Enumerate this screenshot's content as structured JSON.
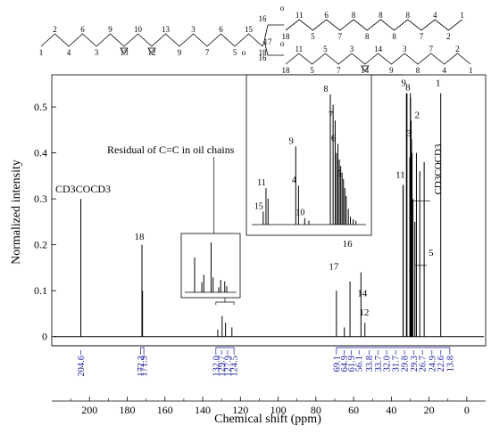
{
  "structure": {
    "chain1": [
      "1",
      "2",
      "4",
      "6",
      "3",
      "9",
      "13",
      "10",
      "12",
      "13",
      "9",
      "3",
      "7",
      "6",
      "5",
      "15",
      "18"
    ],
    "chain2": [
      "18",
      "11",
      "5",
      "6",
      "7",
      "8",
      "8",
      "8",
      "8",
      "8",
      "7",
      "4",
      "2",
      "1"
    ],
    "chain3": [
      "18",
      "11",
      "5",
      "5",
      "7",
      "3",
      "14",
      "14",
      "9",
      "3",
      "8",
      "7",
      "4",
      "2",
      "1"
    ],
    "junction": [
      "16",
      "17",
      "16"
    ],
    "carbonyl_o": "o"
  },
  "chart_data": {
    "type": "line",
    "xlabel": "Chemical shift (ppm)",
    "ylabel": "Normalized intensity",
    "xlim": [
      220,
      -10
    ],
    "ylim": [
      -0.02,
      0.57
    ],
    "x_ticks": [
      200,
      180,
      160,
      140,
      120,
      100,
      80,
      60,
      40,
      20,
      0
    ],
    "y_ticks": [
      0,
      0.1,
      0.2,
      0.3,
      0.4,
      0.5
    ],
    "peaks": [
      {
        "ppm": 204.6,
        "y": 0.3
      },
      {
        "ppm": 172.2,
        "y": 0.2
      },
      {
        "ppm": 171.9,
        "y": 0.1
      },
      {
        "ppm": 132.0,
        "y": 0.015
      },
      {
        "ppm": 129.7,
        "y": 0.045
      },
      {
        "ppm": 127.9,
        "y": 0.03
      },
      {
        "ppm": 124.5,
        "y": 0.02
      },
      {
        "ppm": 69.1,
        "y": 0.1
      },
      {
        "ppm": 64.9,
        "y": 0.02
      },
      {
        "ppm": 61.9,
        "y": 0.12
      },
      {
        "ppm": 56.1,
        "y": 0.14
      },
      {
        "ppm": 54.0,
        "y": 0.03
      },
      {
        "ppm": 33.8,
        "y": 0.33
      },
      {
        "ppm": 33.7,
        "y": 0.33
      },
      {
        "ppm": 32.0,
        "y": 0.53
      },
      {
        "ppm": 31.7,
        "y": 0.53
      },
      {
        "ppm": 30.2,
        "y": 0.39
      },
      {
        "ppm": 29.9,
        "y": 0.53
      },
      {
        "ppm": 29.8,
        "y": 0.52
      },
      {
        "ppm": 29.5,
        "y": 0.47
      },
      {
        "ppm": 29.3,
        "y": 0.43
      },
      {
        "ppm": 29.0,
        "y": 0.4
      },
      {
        "ppm": 28.5,
        "y": 0.3
      },
      {
        "ppm": 27.5,
        "y": 0.25
      },
      {
        "ppm": 26.7,
        "y": 0.4
      },
      {
        "ppm": 24.9,
        "y": 0.36
      },
      {
        "ppm": 22.6,
        "y": 0.38
      },
      {
        "ppm": 13.8,
        "y": 0.53
      }
    ],
    "peak_labels": [
      {
        "text": "18",
        "ppm": 172.2,
        "y": 0.205
      },
      {
        "text": "17",
        "ppm": 69.1,
        "y": 0.14
      },
      {
        "text": "16",
        "ppm": 61.9,
        "y": 0.19
      },
      {
        "text": "13",
        "ppm": 56.1,
        "y": 0.23
      },
      {
        "text": "14",
        "ppm": 54.0,
        "y": 0.082
      },
      {
        "text": "12",
        "ppm": 53.0,
        "y": 0.04
      },
      {
        "text": "11",
        "ppm": 33.8,
        "y": 0.34
      },
      {
        "text": "9",
        "ppm": 32.0,
        "y": 0.54
      },
      {
        "text": "8",
        "ppm": 29.8,
        "y": 0.53
      },
      {
        "text": "3",
        "ppm": 29.3,
        "y": 0.43
      },
      {
        "text": "2",
        "ppm": 24.9,
        "y": 0.47
      },
      {
        "text": "1",
        "ppm": 13.8,
        "y": 0.54
      }
    ],
    "annotations": {
      "solvent_left": "CD3COCD3",
      "solvent_right": "CD3COCD3",
      "residual": "Residual of C=C in  oil chains",
      "peak_5": "5"
    },
    "shift_labels": [
      "204.6",
      "172.2",
      "171.9",
      "132.0",
      "129.7",
      "127.9",
      "124.5",
      "69.1",
      "64.9",
      "61.9",
      "56.1",
      "33.8",
      "33.7",
      "32.0",
      "31.7",
      "29.8",
      "29.3",
      "26.7",
      "24.9",
      "22.6",
      "13.8"
    ],
    "inset_aliphatic": {
      "ppm_range": [
        36,
        20
      ],
      "peaks": [
        {
          "ppm": 34.6,
          "y": 0.1,
          "label": "15"
        },
        {
          "ppm": 34.2,
          "y": 0.28,
          "label": "11"
        },
        {
          "ppm": 33.9,
          "y": 0.2
        },
        {
          "ppm": 29.9,
          "y": 0.6,
          "label": "9"
        },
        {
          "ppm": 29.5,
          "y": 0.3,
          "label": "4"
        },
        {
          "ppm": 28.6,
          "y": 0.05,
          "label": "10"
        },
        {
          "ppm": 28.0,
          "y": 0.03
        },
        {
          "ppm": 24.9,
          "y": 1.0,
          "label": "8"
        },
        {
          "ppm": 24.5,
          "y": 0.92
        },
        {
          "ppm": 24.2,
          "y": 0.8,
          "label": "7"
        },
        {
          "ppm": 24.0,
          "y": 0.55
        },
        {
          "ppm": 23.8,
          "y": 0.62,
          "label": "6"
        },
        {
          "ppm": 23.6,
          "y": 0.5
        },
        {
          "ppm": 23.4,
          "y": 0.45
        },
        {
          "ppm": 23.2,
          "y": 0.4
        },
        {
          "ppm": 23.0,
          "y": 0.35,
          "label": "5"
        },
        {
          "ppm": 22.8,
          "y": 0.28
        },
        {
          "ppm": 22.6,
          "y": 0.22
        },
        {
          "ppm": 22.3,
          "y": 0.12
        },
        {
          "ppm": 22.0,
          "y": 0.06
        },
        {
          "ppm": 21.6,
          "y": 0.04
        },
        {
          "ppm": 21.2,
          "y": 0.03
        }
      ]
    },
    "inset_olefinic": {
      "ppm_range": [
        134,
        122
      ],
      "peaks": [
        {
          "ppm": 132.0,
          "y": 0.7
        },
        {
          "ppm": 130.2,
          "y": 0.2
        },
        {
          "ppm": 129.7,
          "y": 0.35
        },
        {
          "ppm": 127.9,
          "y": 1.0
        },
        {
          "ppm": 127.4,
          "y": 0.3
        },
        {
          "ppm": 126.0,
          "y": 0.1
        },
        {
          "ppm": 125.5,
          "y": 0.25
        },
        {
          "ppm": 124.5,
          "y": 0.22
        },
        {
          "ppm": 124.0,
          "y": 0.12
        }
      ]
    }
  }
}
